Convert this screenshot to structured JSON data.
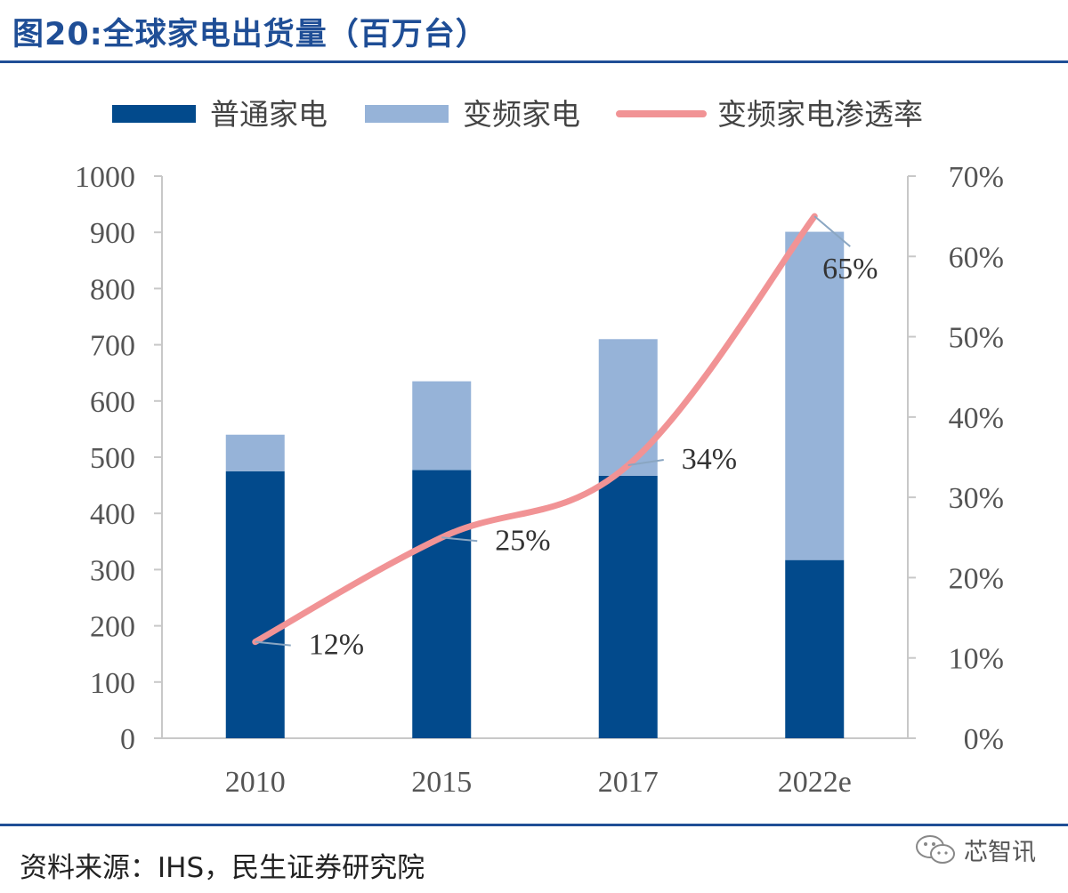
{
  "header": {
    "title": "图20:全球家电出货量（百万台）"
  },
  "footer": {
    "source": "资料来源：IHS，民生证券研究院",
    "watermark_text": "芯智讯"
  },
  "colors": {
    "regular": "#024a8c",
    "inverter": "#96b3d8",
    "penetration": "#f19395",
    "brand": "#1f4e96"
  },
  "chart_data": {
    "type": "bar",
    "stacked": true,
    "categories": [
      "2010",
      "2015",
      "2017",
      "2022e"
    ],
    "series": [
      {
        "name": "普通家电",
        "type": "bar",
        "axis": "left",
        "values": [
          475,
          477,
          467,
          317
        ]
      },
      {
        "name": "变频家电",
        "type": "bar",
        "axis": "left",
        "values": [
          65,
          158,
          243,
          584
        ]
      },
      {
        "name": "变频家电渗透率",
        "type": "line",
        "axis": "right",
        "values": [
          0.12,
          0.25,
          0.34,
          0.65
        ]
      }
    ],
    "data_labels": [
      "12%",
      "25%",
      "34%",
      "65%"
    ],
    "ylim": [
      0,
      1000
    ],
    "y_ticks": [
      "0",
      "100",
      "200",
      "300",
      "400",
      "500",
      "600",
      "700",
      "800",
      "900",
      "1000"
    ],
    "y2lim": [
      0,
      0.7
    ],
    "y2_ticks": [
      "0%",
      "10%",
      "20%",
      "30%",
      "40%",
      "50%",
      "60%",
      "70%"
    ],
    "legend_position": "top",
    "grid": false
  }
}
